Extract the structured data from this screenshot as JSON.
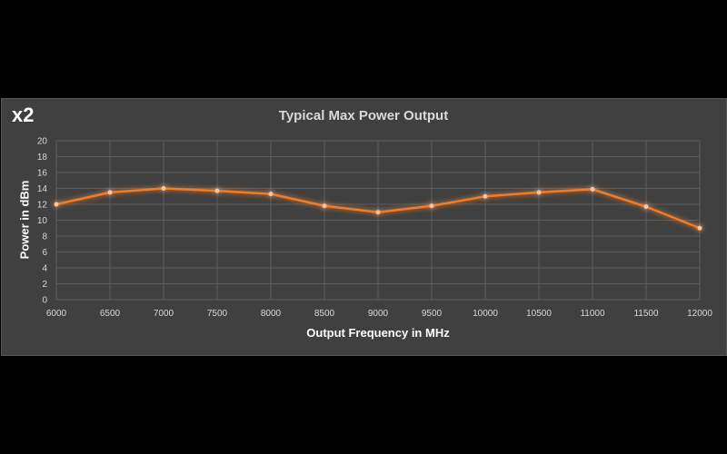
{
  "badge": "x2",
  "chart_data": {
    "type": "line",
    "title": "Typical Max Power Output",
    "xlabel": "Output Frequency in MHz",
    "ylabel": "Power in dBm",
    "x": [
      6000,
      6500,
      7000,
      7500,
      8000,
      8500,
      9000,
      9500,
      10000,
      10500,
      11000,
      11500,
      12000
    ],
    "series": [
      {
        "name": "Power",
        "values": [
          12,
          13.5,
          14,
          13.7,
          13.3,
          11.8,
          11,
          11.8,
          13,
          13.5,
          13.9,
          11.7,
          9
        ]
      }
    ],
    "xlim": [
      6000,
      12000
    ],
    "ylim": [
      0,
      20
    ],
    "xticks": [
      "6000",
      "6500",
      "7000",
      "7500",
      "8000",
      "8500",
      "9000",
      "9500",
      "10000",
      "10500",
      "11000",
      "11500",
      "12000"
    ],
    "yticks": [
      "0",
      "2",
      "4",
      "6",
      "8",
      "10",
      "12",
      "14",
      "16",
      "18",
      "20"
    ],
    "grid": true,
    "legend": "none",
    "line_color": "#f07c2a"
  }
}
